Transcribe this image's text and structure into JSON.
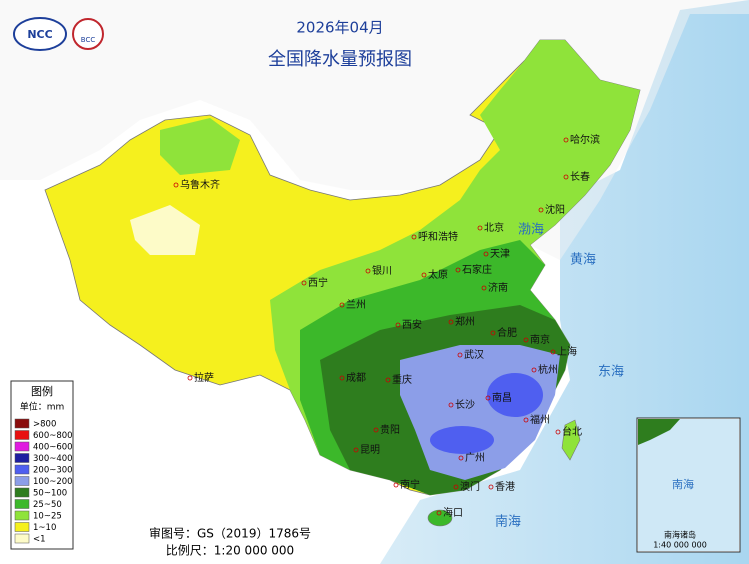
{
  "header": {
    "logo_left": "NCC",
    "logo_right": "BCC",
    "title": "2026年04月",
    "subtitle": "全国降水量预报图"
  },
  "legend": {
    "title": "图例",
    "unit": "单位：mm",
    "items": [
      {
        "label": ">800",
        "color": "#8a0c0c"
      },
      {
        "label": "600~800",
        "color": "#e81010"
      },
      {
        "label": "400~600",
        "color": "#e01be0"
      },
      {
        "label": "300~400",
        "color": "#1e1ea0"
      },
      {
        "label": "200~300",
        "color": "#4f5ff0"
      },
      {
        "label": "100~200",
        "color": "#8c9ee8"
      },
      {
        "label": "50~100",
        "color": "#2e7d1e"
      },
      {
        "label": "25~50",
        "color": "#3cb82a"
      },
      {
        "label": "10~25",
        "color": "#8fe33a"
      },
      {
        "label": "1~10",
        "color": "#f5f01e"
      },
      {
        "label": "<1",
        "color": "#fdfbc8"
      }
    ]
  },
  "cities": [
    "乌鲁木齐",
    "哈尔滨",
    "长春",
    "沈阳",
    "北京",
    "天津",
    "呼和浩特",
    "银川",
    "石家庄",
    "太原",
    "济南",
    "西宁",
    "兰州",
    "西安",
    "郑州",
    "合肥",
    "南京",
    "上海",
    "武汉",
    "杭州",
    "成都",
    "重庆",
    "拉萨",
    "长沙",
    "南昌",
    "福州",
    "贵阳",
    "台北",
    "昆明",
    "广州",
    "南宁",
    "澳门",
    "香港",
    "海口"
  ],
  "seas": [
    "渤海",
    "黄海",
    "东海",
    "南海"
  ],
  "inset": {
    "label": "南海",
    "caption": "南海诸岛",
    "scale": "1:40 000 000"
  },
  "footer": {
    "approval": "审图号：GS（2019）1786号",
    "scale": "比例尺：1:20 000 000"
  }
}
